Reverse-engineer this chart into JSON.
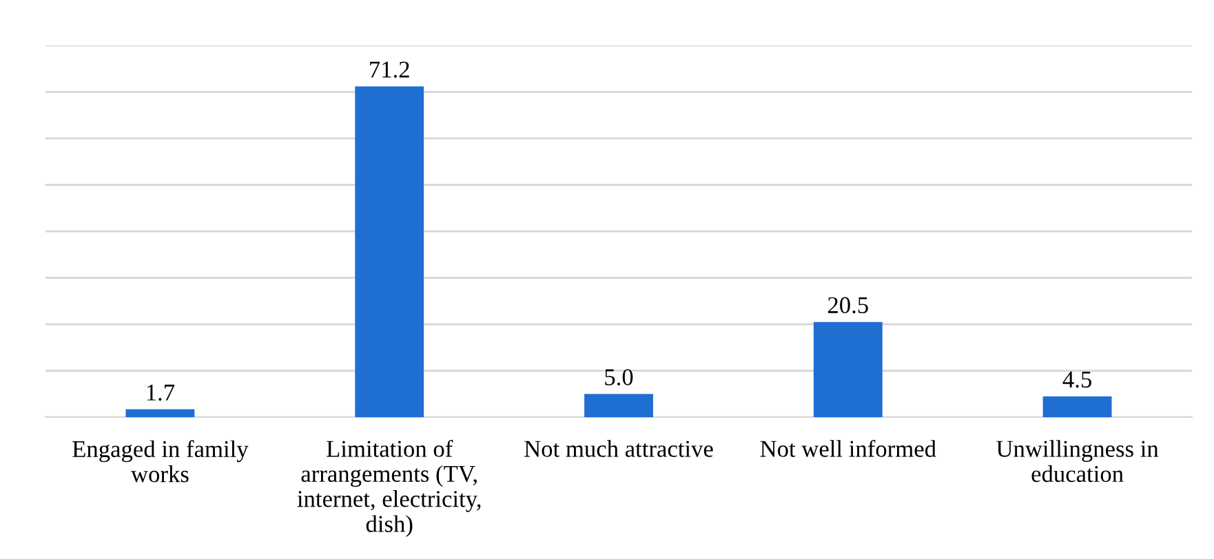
{
  "chart_data": {
    "type": "bar",
    "categories": [
      "Engaged in family\nworks",
      "Limitation of\narrangements (TV,\ninternet, electricity,\ndish)",
      "Not much attractive",
      "Not well informed",
      "Unwillingness in\neducation"
    ],
    "values": [
      1.7,
      71.2,
      5.0,
      20.5,
      4.5
    ],
    "color": "#1f6fd2",
    "ylim": [
      0,
      80
    ],
    "yticks": [
      {
        "value": 0,
        "label": null
      },
      {
        "value": 10,
        "label": null
      },
      {
        "value": 20,
        "label": null
      },
      {
        "value": 30,
        "label": null
      },
      {
        "value": 40,
        "label": null
      },
      {
        "value": 50,
        "label": null
      },
      {
        "value": 60,
        "label": null
      },
      {
        "value": 70,
        "label": null
      },
      {
        "value": 80,
        "label": null
      }
    ],
    "tick_labels": "x",
    "grid": "y",
    "value_labels": [
      "1.7",
      "71.2",
      "5.0",
      "20.5",
      "4.5"
    ]
  }
}
